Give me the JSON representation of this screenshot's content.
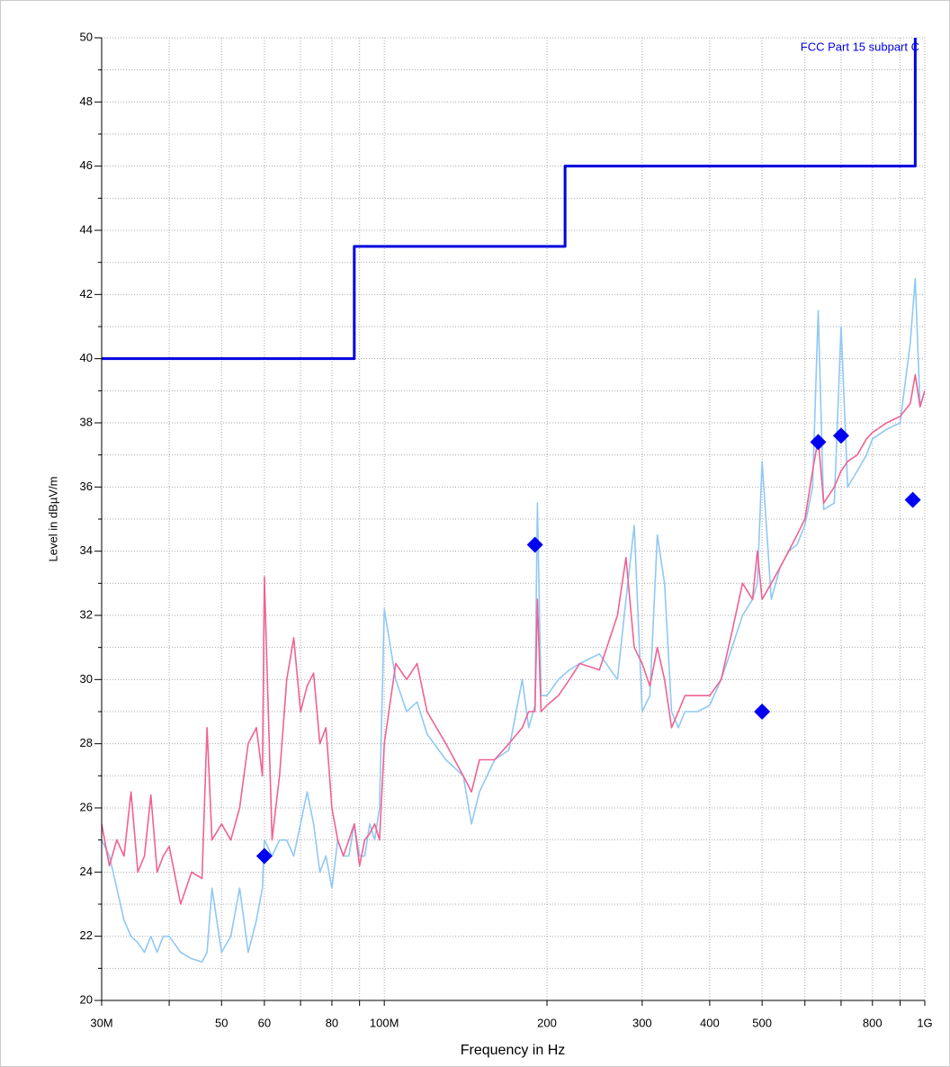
{
  "chart_data": {
    "type": "line",
    "xscale": "log",
    "xlabel": "Frequency in Hz",
    "ylabel": "Level in dBµV/m",
    "xlim": [
      30000000.0,
      1000000000.0
    ],
    "ylim": [
      20,
      50
    ],
    "xticks": [
      {
        "value": 30000000.0,
        "label": "30M"
      },
      {
        "value": 50000000.0,
        "label": "50"
      },
      {
        "value": 60000000.0,
        "label": "60"
      },
      {
        "value": 80000000.0,
        "label": "80"
      },
      {
        "value": 100000000.0,
        "label": "100M"
      },
      {
        "value": 200000000.0,
        "label": "200"
      },
      {
        "value": 300000000.0,
        "label": "300"
      },
      {
        "value": 400000000.0,
        "label": "400"
      },
      {
        "value": 500000000.0,
        "label": "500"
      },
      {
        "value": 800000000.0,
        "label": "800"
      },
      {
        "value": 1000000000.0,
        "label": "1G"
      }
    ],
    "xminorticks": [
      40000000.0,
      70000000.0,
      90000000.0,
      600000000.0,
      700000000.0,
      900000000.0
    ],
    "yticks": [
      20,
      22,
      24,
      26,
      28,
      30,
      32,
      34,
      36,
      38,
      40,
      42,
      44,
      46,
      48,
      50
    ],
    "yminorticks": [
      21,
      23,
      25,
      27,
      29,
      31,
      33,
      35,
      37,
      39,
      41,
      43,
      45,
      47,
      49
    ],
    "grid": true,
    "annotation": "FCC Part 15 subpart C",
    "series": [
      {
        "color": "#90c8f4",
        "x": [
          30000000.0,
          31000000.0,
          32000000.0,
          33000000.0,
          34000000.0,
          35000000.0,
          36000000.0,
          37000000.0,
          38000000.0,
          39000000.0,
          40000000.0,
          42000000.0,
          44000000.0,
          46000000.0,
          47000000.0,
          48000000.0,
          50000000.0,
          52000000.0,
          54000000.0,
          56000000.0,
          58000000.0,
          59500000.0,
          60000000.0,
          62000000.0,
          64000000.0,
          66000000.0,
          68000000.0,
          70000000.0,
          72000000.0,
          74000000.0,
          76000000.0,
          78000000.0,
          80000000.0,
          82000000.0,
          84000000.0,
          86000000.0,
          88000000.0,
          90000000.0,
          92000000.0,
          94000000.0,
          96000000.0,
          98000000.0,
          100000000.0,
          105000000.0,
          110000000.0,
          115000000.0,
          120000000.0,
          130000000.0,
          140000000.0,
          145000000.0,
          150000000.0,
          160000000.0,
          170000000.0,
          180000000.0,
          185000000.0,
          190000000.0,
          192000000.0,
          195000000.0,
          200000000.0,
          210000000.0,
          220000000.0,
          230000000.0,
          250000000.0,
          270000000.0,
          280000000.0,
          290000000.0,
          300000000.0,
          310000000.0,
          320000000.0,
          330000000.0,
          340000000.0,
          350000000.0,
          360000000.0,
          380000000.0,
          400000000.0,
          420000000.0,
          440000000.0,
          460000000.0,
          480000000.0,
          490000000.0,
          500000000.0,
          520000000.0,
          540000000.0,
          560000000.0,
          580000000.0,
          600000000.0,
          620000000.0,
          635000000.0,
          650000000.0,
          680000000.0,
          700000000.0,
          720000000.0,
          750000000.0,
          780000000.0,
          800000000.0,
          850000000.0,
          900000000.0,
          940000000.0,
          960000000.0,
          980000000.0,
          1000000000.0
        ],
        "values": [
          25,
          24.5,
          23.5,
          22.5,
          22,
          21.8,
          21.5,
          22,
          21.5,
          22,
          22,
          21.5,
          21.3,
          21.2,
          21.5,
          23.5,
          21.5,
          22,
          23.5,
          21.5,
          22.5,
          23.5,
          25,
          24.5,
          25,
          25,
          24.5,
          25.5,
          26.5,
          25.5,
          24,
          24.5,
          23.5,
          25,
          24.5,
          24.5,
          25.5,
          24.5,
          24.5,
          25.5,
          25,
          26,
          32.2,
          30,
          29,
          29.3,
          28.3,
          27.5,
          27,
          25.5,
          26.5,
          27.5,
          27.8,
          30,
          28.5,
          29.2,
          35.5,
          29.5,
          29.5,
          30,
          30.3,
          30.5,
          30.8,
          30,
          32.5,
          34.8,
          29,
          29.5,
          34.5,
          33,
          29,
          28.5,
          29,
          29,
          29.2,
          30,
          31,
          32,
          32.5,
          33,
          36.8,
          32.5,
          33.5,
          34,
          34.2,
          34.8,
          36,
          41.5,
          35.3,
          35.5,
          41,
          36,
          36.5,
          37,
          37.5,
          37.8,
          38,
          40.5,
          42.5,
          38.5,
          39
        ]
      },
      {
        "color": "#f06292",
        "x": [
          30000000.0,
          31000000.0,
          32000000.0,
          33000000.0,
          34000000.0,
          35000000.0,
          36000000.0,
          37000000.0,
          38000000.0,
          39000000.0,
          40000000.0,
          42000000.0,
          44000000.0,
          46000000.0,
          47000000.0,
          48000000.0,
          50000000.0,
          52000000.0,
          54000000.0,
          56000000.0,
          58000000.0,
          59500000.0,
          60000000.0,
          62000000.0,
          64000000.0,
          66000000.0,
          68000000.0,
          70000000.0,
          72000000.0,
          74000000.0,
          76000000.0,
          78000000.0,
          80000000.0,
          82000000.0,
          84000000.0,
          86000000.0,
          88000000.0,
          90000000.0,
          92000000.0,
          94000000.0,
          96000000.0,
          98000000.0,
          100000000.0,
          105000000.0,
          110000000.0,
          115000000.0,
          120000000.0,
          130000000.0,
          140000000.0,
          145000000.0,
          150000000.0,
          160000000.0,
          170000000.0,
          180000000.0,
          185000000.0,
          190000000.0,
          192000000.0,
          195000000.0,
          200000000.0,
          210000000.0,
          220000000.0,
          230000000.0,
          250000000.0,
          270000000.0,
          280000000.0,
          290000000.0,
          300000000.0,
          310000000.0,
          320000000.0,
          330000000.0,
          340000000.0,
          350000000.0,
          360000000.0,
          380000000.0,
          400000000.0,
          420000000.0,
          440000000.0,
          460000000.0,
          480000000.0,
          490000000.0,
          500000000.0,
          520000000.0,
          540000000.0,
          560000000.0,
          580000000.0,
          600000000.0,
          620000000.0,
          635000000.0,
          650000000.0,
          680000000.0,
          700000000.0,
          720000000.0,
          750000000.0,
          780000000.0,
          800000000.0,
          850000000.0,
          900000000.0,
          940000000.0,
          960000000.0,
          980000000.0,
          1000000000.0
        ],
        "values": [
          25.5,
          24.2,
          25,
          24.5,
          26.5,
          24,
          24.5,
          26.4,
          24,
          24.5,
          24.8,
          23,
          24,
          23.8,
          28.5,
          25,
          25.5,
          25,
          26,
          28,
          28.5,
          27,
          33.2,
          25,
          27,
          30,
          31.3,
          29,
          29.8,
          30.2,
          28,
          28.5,
          26,
          25,
          24.5,
          25,
          25.5,
          24.2,
          25,
          25.2,
          25.5,
          25,
          28,
          30.5,
          30,
          30.5,
          29,
          28,
          27,
          26.5,
          27.5,
          27.5,
          28,
          28.5,
          29,
          29,
          32.5,
          29,
          29.2,
          29.5,
          30,
          30.5,
          30.3,
          32,
          33.8,
          31,
          30.5,
          29.8,
          31,
          30,
          28.5,
          29,
          29.5,
          29.5,
          29.5,
          30,
          31.5,
          33,
          32.5,
          34,
          32.5,
          33,
          33.5,
          34,
          34.5,
          35,
          36.5,
          37.5,
          35.5,
          36,
          36.5,
          36.8,
          37,
          37.5,
          37.7,
          38,
          38.2,
          38.6,
          39.5,
          38.5,
          39
        ]
      },
      {
        "color": "#0000e0",
        "width": 3,
        "x": [
          30000000.0,
          88000000.0,
          88000000.0,
          216000000.0,
          216000000.0,
          960000000.0,
          960000000.0
        ],
        "values": [
          40,
          40,
          43.5,
          43.5,
          46,
          46,
          50
        ]
      }
    ],
    "markers": {
      "color": "#0000f0",
      "x": [
        60000000.0,
        190000000.0,
        500000000.0,
        635000000.0,
        700000000.0,
        950000000.0
      ],
      "values": [
        24.5,
        34.2,
        29.0,
        37.4,
        37.6,
        35.6
      ]
    }
  }
}
